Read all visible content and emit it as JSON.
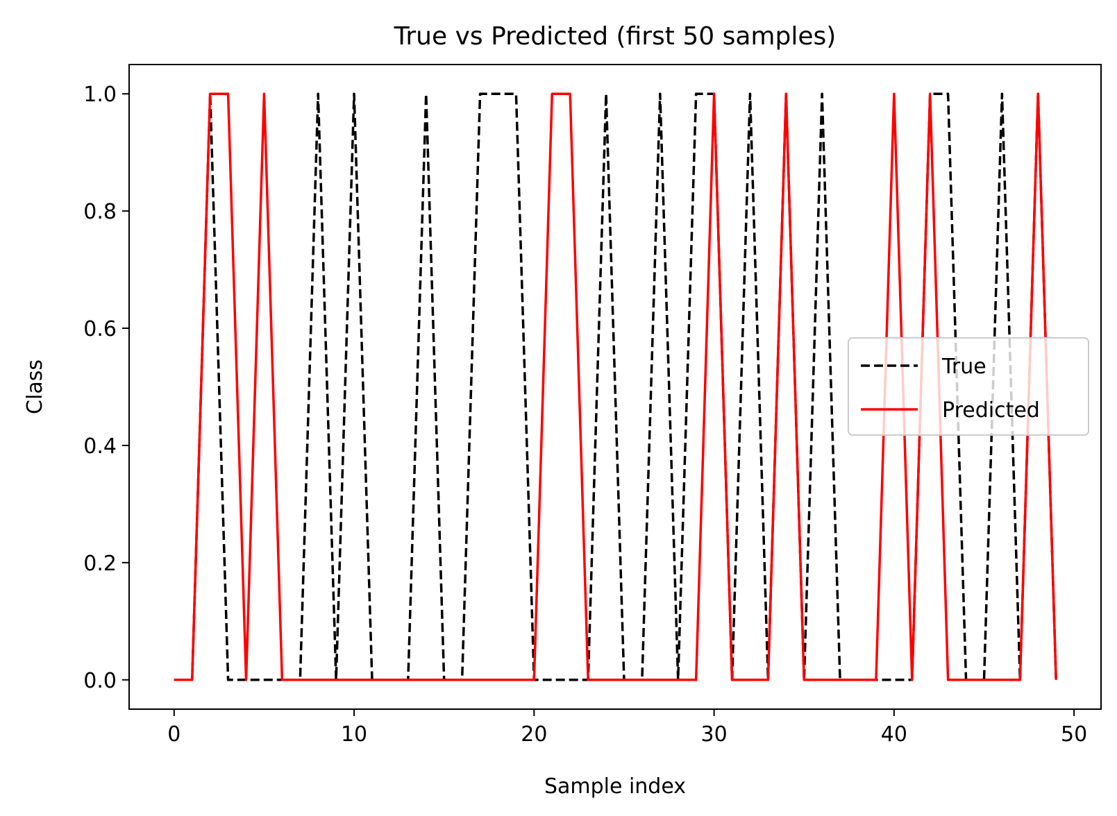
{
  "chart_data": {
    "type": "line",
    "title": "True vs Predicted (first 50 samples)",
    "xlabel": "Sample index",
    "ylabel": "Class",
    "xlim": [
      -2.5,
      51.5
    ],
    "ylim": [
      -0.05,
      1.05
    ],
    "xticks": [
      0,
      10,
      20,
      30,
      40,
      50
    ],
    "xtick_labels": [
      "0",
      "10",
      "20",
      "30",
      "40",
      "50"
    ],
    "yticks": [
      0.0,
      0.2,
      0.4,
      0.6,
      0.8,
      1.0
    ],
    "ytick_labels": [
      "0.0",
      "0.2",
      "0.4",
      "0.6",
      "0.8",
      "1.0"
    ],
    "grid": false,
    "legend_position": "center-right",
    "x": [
      0,
      1,
      2,
      3,
      4,
      5,
      6,
      7,
      8,
      9,
      10,
      11,
      12,
      13,
      14,
      15,
      16,
      17,
      18,
      19,
      20,
      21,
      22,
      23,
      24,
      25,
      26,
      27,
      28,
      29,
      30,
      31,
      32,
      33,
      34,
      35,
      36,
      37,
      38,
      39,
      40,
      41,
      42,
      43,
      44,
      45,
      46,
      47,
      48,
      49
    ],
    "series": [
      {
        "name": "True",
        "color": "#000000",
        "style": "dashed",
        "values": [
          0,
          0,
          1,
          0,
          0,
          0,
          0,
          0,
          1,
          0,
          1,
          0,
          0,
          0,
          1,
          0,
          0,
          1,
          1,
          1,
          0,
          0,
          0,
          0,
          1,
          0,
          0,
          1,
          0,
          1,
          1,
          0,
          1,
          0,
          1,
          0,
          1,
          0,
          0,
          0,
          0,
          0,
          1,
          1,
          0,
          0,
          1,
          0,
          1,
          0
        ]
      },
      {
        "name": "Predicted",
        "color": "#ff0000",
        "style": "solid",
        "values": [
          0,
          0,
          1,
          1,
          0,
          1,
          0,
          0,
          0,
          0,
          0,
          0,
          0,
          0,
          0,
          0,
          0,
          0,
          0,
          0,
          0,
          1,
          1,
          0,
          0,
          0,
          0,
          0,
          0,
          0,
          1,
          0,
          0,
          0,
          1,
          0,
          0,
          0,
          0,
          0,
          1,
          0,
          1,
          0,
          0,
          0,
          0,
          0,
          1,
          0
        ]
      }
    ]
  }
}
